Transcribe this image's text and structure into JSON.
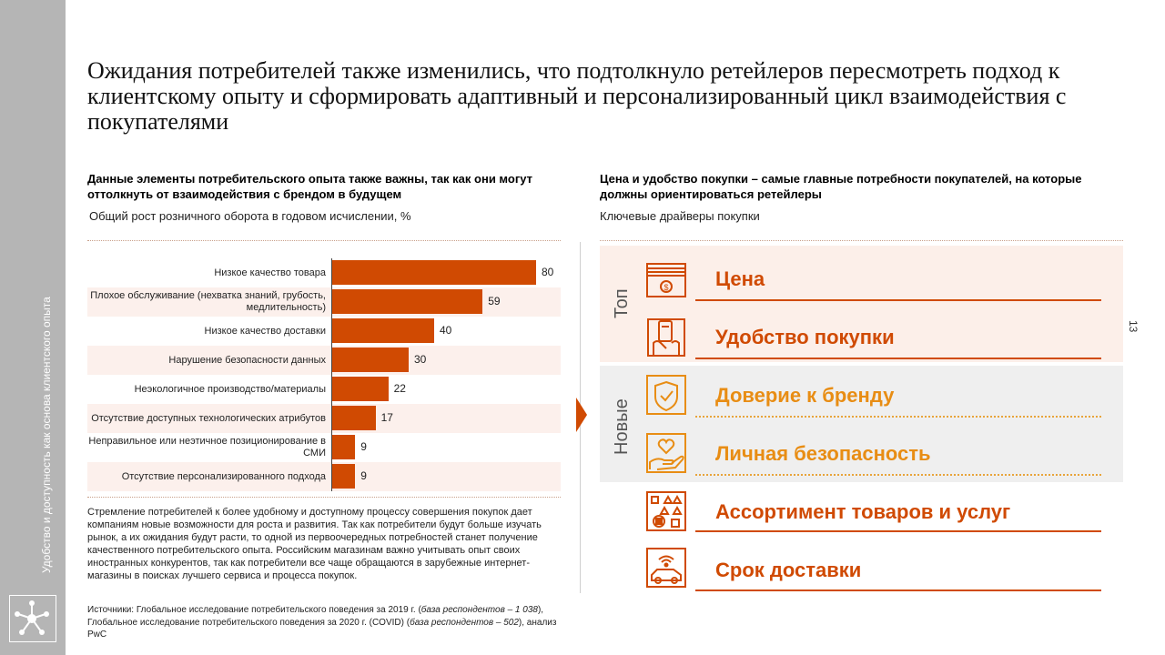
{
  "sidebar": {
    "vertical_text": "Удобство и доступность как основа клиентского опыта"
  },
  "page_number": "13",
  "title": "Ожидания потребителей также изменились, что подтолкнуло ретейлеров пересмотреть подход к клиентскому опыту и сформировать адаптивный и персонализированный цикл взаимодействия с покупателями",
  "left": {
    "heading": "Данные элементы потребительского опыта также важны, так как они могут оттолкнуть от взаимодействия с брендом в будущем",
    "subheading": "Общий рост розничного оборота в годовом исчислении, %",
    "paragraph": "Стремление потребителей к более удобному и доступному процессу совершения покупок дает компаниям новые возможности для роста и развития. Так как потребители будут больше изучать рынок, а их ожидания будут расти, то одной из первоочередных потребностей станет получение качественного потребительского опыта. Российским магазинам важно учитывать опыт своих иностранных конкурентов, так как потребители все чаще обращаются в зарубежные интернет-магазины в поисках лучшего сервиса и процесса покупок.",
    "sources": {
      "p1": "Источники: Глобальное исследование потребительского поведения за 2019 г. (",
      "p2": "база респондентов – 1 038",
      "p3": "), Глобальное исследование потребительского поведения за 2020 г. (COVID) (",
      "p4": "база респондентов – 502",
      "p5": "), анализ PwC"
    }
  },
  "chart_data": {
    "type": "bar",
    "orientation": "horizontal",
    "title": "",
    "xlabel": "",
    "ylabel": "",
    "categories": [
      "Низкое качество товара",
      "Плохое обслуживание (нехватка знаний, грубость, медлительность)",
      "Низкое качество доставки",
      "Нарушение безопасности данных",
      "Неэкологичное производство/материалы",
      "Отсутствие доступных технологических атрибутов",
      "Неправильное или неэтичное позиционирование в СМИ",
      "Отсутствие персонализированного подхода"
    ],
    "values": [
      80,
      59,
      40,
      30,
      22,
      17,
      9,
      9
    ],
    "xlim": [
      0,
      80
    ],
    "bar_color": "#d04a02",
    "grid": false,
    "legend": "none"
  },
  "right": {
    "heading": "Цена и удобство покупки – самые главные потребности покупателей, на которые должны ориентироваться ретейлеры",
    "subheading": "Ключевые драйверы покупки",
    "band_top_label": "Топ",
    "band_new_label": "Новые",
    "drivers": [
      {
        "label": "Цена",
        "icon": "money-icon",
        "color": "#d04a02"
      },
      {
        "label": "Удобство покупки",
        "icon": "card-hand-icon",
        "color": "#d04a02"
      },
      {
        "label": "Доверие к бренду",
        "icon": "shield-check-icon",
        "color": "#e88d14"
      },
      {
        "label": "Личная безопасность",
        "icon": "heart-hand-icon",
        "color": "#e88d14"
      },
      {
        "label": "Ассортимент товаров и услуг",
        "icon": "assortment-icon",
        "color": "#d04a02"
      },
      {
        "label": "Срок доставки",
        "icon": "connected-car-icon",
        "color": "#d04a02"
      }
    ]
  },
  "colors": {
    "accent": "#d04a02",
    "amber": "#e88d14",
    "rail": "#b5b5b5",
    "band_top": "#fcefe9",
    "band_new": "#efefef"
  }
}
